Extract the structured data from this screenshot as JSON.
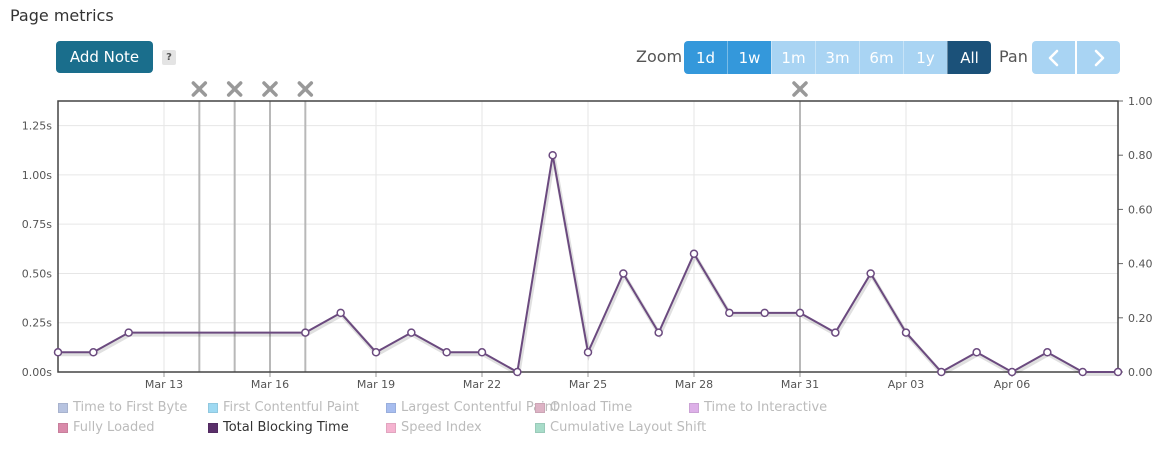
{
  "header": {
    "title": "Page metrics"
  },
  "toolbar": {
    "add_note_label": "Add Note",
    "help_label": "?",
    "zoom_label": "Zoom",
    "zoom_options": [
      {
        "label": "1d",
        "state": "active"
      },
      {
        "label": "1w",
        "state": "active"
      },
      {
        "label": "1m",
        "state": "inactive"
      },
      {
        "label": "3m",
        "state": "inactive"
      },
      {
        "label": "6m",
        "state": "inactive"
      },
      {
        "label": "1y",
        "state": "inactive"
      },
      {
        "label": "All",
        "state": "selected"
      }
    ],
    "pan_label": "Pan",
    "pan_left_icon": "chevron-left-icon",
    "pan_right_icon": "chevron-right-icon"
  },
  "colors": {
    "accent": "#1a6e8c",
    "zoom_active": "#3498db",
    "zoom_inactive": "#a9d4f3",
    "zoom_selected": "#1b5179",
    "series_line": "#6b4a7f",
    "note_marker": "#999999"
  },
  "chart_data": {
    "type": "line",
    "x_ticks": [
      "Mar 13",
      "Mar 16",
      "Mar 19",
      "Mar 22",
      "Mar 25",
      "Mar 28",
      "Mar 31",
      "Apr 03",
      "Apr 06"
    ],
    "x_range": [
      "Mar 10",
      "Apr 09"
    ],
    "y_left": {
      "ticks": [
        "0.00s",
        "0.25s",
        "0.50s",
        "0.75s",
        "1.00s",
        "1.25s"
      ],
      "range": [
        0,
        1.375
      ]
    },
    "y_right": {
      "ticks": [
        "0.00",
        "0.20",
        "0.40",
        "0.60",
        "0.80",
        "1.00"
      ],
      "range": [
        0,
        1.0
      ]
    },
    "grid": true,
    "series": [
      {
        "name": "Total Blocking Time",
        "color": "#6b4a7f",
        "points": [
          [
            "Mar 10",
            0.1
          ],
          [
            "Mar 11",
            0.1
          ],
          [
            "Mar 12",
            0.2
          ],
          [
            "Mar 17",
            0.2
          ],
          [
            "Mar 18",
            0.3
          ],
          [
            "Mar 19",
            0.1
          ],
          [
            "Mar 20",
            0.2
          ],
          [
            "Mar 21",
            0.1
          ],
          [
            "Mar 22",
            0.1
          ],
          [
            "Mar 23",
            0.0
          ],
          [
            "Mar 24",
            1.1
          ],
          [
            "Mar 25",
            0.1
          ],
          [
            "Mar 26",
            0.5
          ],
          [
            "Mar 27",
            0.2
          ],
          [
            "Mar 28",
            0.6
          ],
          [
            "Mar 29",
            0.3
          ],
          [
            "Mar 30",
            0.3
          ],
          [
            "Mar 31",
            0.3
          ],
          [
            "Apr 01",
            0.2
          ],
          [
            "Apr 02",
            0.5
          ],
          [
            "Apr 03",
            0.2
          ],
          [
            "Apr 04",
            0.0
          ],
          [
            "Apr 05",
            0.1
          ],
          [
            "Apr 06",
            0.0
          ],
          [
            "Apr 07",
            0.1
          ],
          [
            "Apr 08",
            0.0
          ],
          [
            "Apr 09",
            0.0
          ]
        ]
      }
    ],
    "notes": [
      "Mar 14",
      "Mar 15",
      "Mar 16",
      "Mar 17",
      "Mar 31"
    ],
    "legend_placement": "bottom-left",
    "legend": [
      {
        "name": "Time to First Byte",
        "color": "#b7c3e0",
        "enabled": false
      },
      {
        "name": "First Contentful Paint",
        "color": "#9ed9f2",
        "enabled": false
      },
      {
        "name": "Largest Contentful Paint",
        "color": "#a7bdef",
        "enabled": false
      },
      {
        "name": "Onload Time",
        "color": "#ddb3c5",
        "enabled": false
      },
      {
        "name": "Time to Interactive",
        "color": "#ddb0e8",
        "enabled": false
      },
      {
        "name": "Fully Loaded",
        "color": "#d98aaa",
        "enabled": false
      },
      {
        "name": "Total Blocking Time",
        "color": "#5a2f6a",
        "enabled": true
      },
      {
        "name": "Speed Index",
        "color": "#f5b3d0",
        "enabled": false
      },
      {
        "name": "Cumulative Layout Shift",
        "color": "#a8dcc9",
        "enabled": false
      }
    ]
  }
}
